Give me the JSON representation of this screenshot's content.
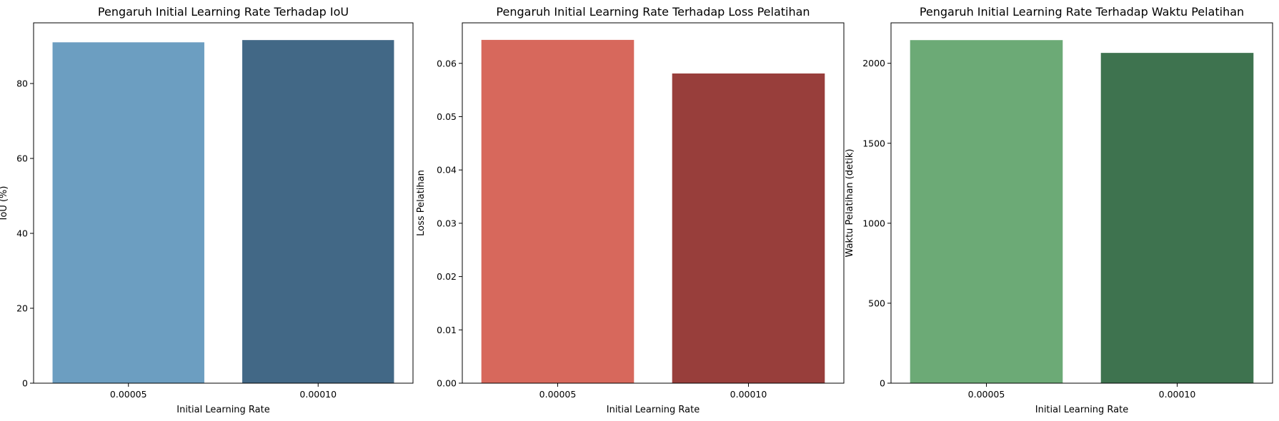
{
  "chart_data": [
    {
      "type": "bar",
      "title": "Pengaruh Initial Learning Rate Terhadap IoU",
      "xlabel": "Initial Learning Rate",
      "ylabel": "IoU (%)",
      "categories": [
        "0.00005",
        "0.00010"
      ],
      "values": [
        91.0,
        91.6
      ],
      "colors": [
        "#6c9ec1",
        "#426886"
      ],
      "ylim": [
        0,
        96.2
      ],
      "yticks": [
        0,
        20,
        40,
        60,
        80
      ],
      "ytick_labels": [
        "0",
        "20",
        "40",
        "60",
        "80"
      ],
      "grid": false,
      "legend": "none"
    },
    {
      "type": "bar",
      "title": "Pengaruh Initial Learning Rate Terhadap Loss Pelatihan",
      "xlabel": "Initial Learning Rate",
      "ylabel": "Loss Pelatihan",
      "categories": [
        "0.00005",
        "0.00010"
      ],
      "values": [
        0.0644,
        0.0581
      ],
      "colors": [
        "#d7685c",
        "#983e3b"
      ],
      "ylim": [
        0,
        0.0676
      ],
      "yticks": [
        0,
        0.01,
        0.02,
        0.03,
        0.04,
        0.05,
        0.06
      ],
      "ytick_labels": [
        "0.00",
        "0.01",
        "0.02",
        "0.03",
        "0.04",
        "0.05",
        "0.06"
      ],
      "grid": false,
      "legend": "none"
    },
    {
      "type": "bar",
      "title": "Pengaruh Initial Learning Rate Terhadap Waktu Pelatihan",
      "xlabel": "Initial Learning Rate",
      "ylabel": "Waktu Pelatihan (detik)",
      "categories": [
        "0.00005",
        "0.00010"
      ],
      "values": [
        2145,
        2065
      ],
      "colors": [
        "#6caa76",
        "#3e734f"
      ],
      "ylim": [
        0,
        2253
      ],
      "yticks": [
        0,
        500,
        1000,
        1500,
        2000
      ],
      "ytick_labels": [
        "0",
        "500",
        "1000",
        "1500",
        "2000"
      ],
      "grid": false,
      "legend": "none"
    }
  ]
}
